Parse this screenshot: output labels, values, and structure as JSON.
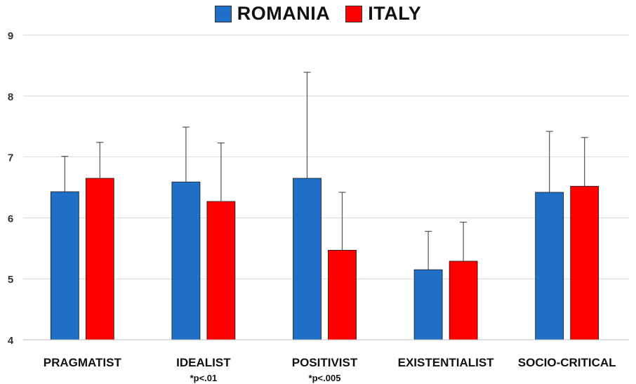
{
  "chart_data": {
    "type": "bar",
    "categories": [
      "PRAGMATIST",
      "IDEALIST",
      "POSITIVIST",
      "EXISTENTIALIST",
      "SOCIO-CRITICAL"
    ],
    "annotations": [
      "",
      "*p<.01",
      "*p<.005",
      "",
      ""
    ],
    "series": [
      {
        "name": "ROMANIA",
        "color": "#1f6fc6",
        "values": [
          6.43,
          6.59,
          6.65,
          5.15,
          6.42
        ],
        "error": [
          0.58,
          0.9,
          1.74,
          0.63,
          1.0
        ]
      },
      {
        "name": "ITALY",
        "color": "#ff0000",
        "values": [
          6.65,
          6.27,
          5.47,
          5.29,
          6.52
        ],
        "error": [
          0.59,
          0.96,
          0.95,
          0.64,
          0.8
        ]
      }
    ],
    "yticks": [
      4,
      5,
      6,
      7,
      8,
      9
    ],
    "ylim": [
      4,
      9
    ],
    "grid": true,
    "legend_position": "top-center"
  }
}
